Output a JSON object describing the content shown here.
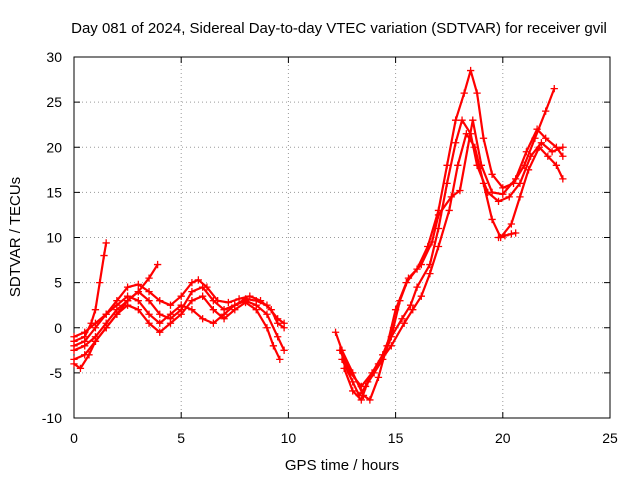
{
  "chart_data": {
    "type": "scatter",
    "title": "Day 081 of 2024, Sidereal Day-to-day VTEC variation (SDTVAR) for receiver gvil",
    "xlabel": "GPS time / hours",
    "ylabel": "SDTVAR / TECUs",
    "xlim": [
      0,
      25
    ],
    "ylim": [
      -10,
      30
    ],
    "xticks": [
      0,
      5,
      10,
      15,
      20,
      25
    ],
    "yticks": [
      -10,
      -5,
      0,
      5,
      10,
      15,
      20,
      25,
      30
    ],
    "grid": true,
    "color": "#ff0000",
    "marker": "plus",
    "series": [
      {
        "values": [
          [
            0.0,
            -1.5
          ],
          [
            0.5,
            -1.0
          ],
          [
            0.8,
            0.5
          ],
          [
            1.0,
            2.0
          ],
          [
            1.2,
            5.0
          ],
          [
            1.4,
            8.0
          ],
          [
            1.5,
            9.4
          ]
        ]
      },
      {
        "values": [
          [
            0.0,
            -4.0
          ],
          [
            0.3,
            -4.5
          ],
          [
            0.7,
            -3.0
          ],
          [
            1.0,
            -1.5
          ],
          [
            1.5,
            0.0
          ],
          [
            2.0,
            1.5
          ],
          [
            2.5,
            3.0
          ],
          [
            3.0,
            4.0
          ],
          [
            3.5,
            5.5
          ],
          [
            3.9,
            7.0
          ]
        ]
      },
      {
        "values": [
          [
            0.0,
            -2.0
          ],
          [
            0.5,
            -1.5
          ],
          [
            1.0,
            0.0
          ],
          [
            1.5,
            1.5
          ],
          [
            2.0,
            3.0
          ],
          [
            2.5,
            4.5
          ],
          [
            3.0,
            4.8
          ],
          [
            3.5,
            4.0
          ],
          [
            4.0,
            3.0
          ],
          [
            4.5,
            2.5
          ],
          [
            5.0,
            3.5
          ],
          [
            5.5,
            5.0
          ],
          [
            5.8,
            5.3
          ],
          [
            6.2,
            4.5
          ],
          [
            6.7,
            3.0
          ],
          [
            7.2,
            2.8
          ],
          [
            7.7,
            3.2
          ],
          [
            8.2,
            3.5
          ],
          [
            8.7,
            3.0
          ],
          [
            9.2,
            2.0
          ],
          [
            9.5,
            0.5
          ],
          [
            9.8,
            0.0
          ]
        ]
      },
      {
        "values": [
          [
            0.0,
            -1.0
          ],
          [
            0.5,
            -0.5
          ],
          [
            1.0,
            0.5
          ],
          [
            1.5,
            1.5
          ],
          [
            2.0,
            2.5
          ],
          [
            2.5,
            3.5
          ],
          [
            3.0,
            3.0
          ],
          [
            3.5,
            1.5
          ],
          [
            4.0,
            0.5
          ],
          [
            4.5,
            1.5
          ],
          [
            5.0,
            2.5
          ],
          [
            5.5,
            2.0
          ],
          [
            6.0,
            1.0
          ],
          [
            6.5,
            0.5
          ],
          [
            7.0,
            1.5
          ],
          [
            7.5,
            2.5
          ],
          [
            8.0,
            3.0
          ],
          [
            8.5,
            2.5
          ],
          [
            9.0,
            1.5
          ],
          [
            9.5,
            -1.0
          ],
          [
            9.8,
            -2.5
          ]
        ]
      },
      {
        "values": [
          [
            0.0,
            -3.5
          ],
          [
            0.5,
            -3.0
          ],
          [
            1.0,
            -1.5
          ],
          [
            1.5,
            0.0
          ],
          [
            2.0,
            1.5
          ],
          [
            2.5,
            2.5
          ],
          [
            3.0,
            2.0
          ],
          [
            3.5,
            0.5
          ],
          [
            4.0,
            -0.5
          ],
          [
            4.5,
            0.5
          ],
          [
            5.0,
            1.5
          ],
          [
            5.5,
            3.0
          ],
          [
            6.0,
            3.5
          ],
          [
            6.5,
            2.0
          ],
          [
            7.0,
            1.0
          ],
          [
            7.5,
            2.0
          ],
          [
            8.0,
            2.8
          ],
          [
            8.5,
            2.0
          ],
          [
            9.0,
            0.0
          ],
          [
            9.3,
            -2.0
          ],
          [
            9.6,
            -3.5
          ]
        ]
      },
      {
        "values": [
          [
            0.0,
            -2.5
          ],
          [
            0.5,
            -2.0
          ],
          [
            1.0,
            -1.0
          ],
          [
            1.5,
            0.5
          ],
          [
            2.0,
            2.0
          ],
          [
            2.5,
            3.0
          ],
          [
            3.0,
            4.0
          ],
          [
            3.5,
            3.0
          ],
          [
            4.0,
            1.5
          ],
          [
            4.5,
            1.0
          ],
          [
            5.0,
            2.0
          ],
          [
            5.5,
            4.0
          ],
          [
            6.0,
            4.5
          ],
          [
            6.5,
            3.0
          ],
          [
            7.0,
            2.0
          ],
          [
            7.5,
            2.5
          ],
          [
            8.0,
            3.2
          ],
          [
            8.5,
            3.0
          ],
          [
            9.0,
            2.5
          ],
          [
            9.5,
            1.0
          ],
          [
            9.8,
            0.5
          ]
        ]
      },
      {
        "values": [
          [
            12.2,
            -0.5
          ],
          [
            12.5,
            -2.5
          ],
          [
            13.0,
            -5.0
          ],
          [
            13.5,
            -7.5
          ],
          [
            13.8,
            -8.0
          ],
          [
            14.2,
            -5.5
          ],
          [
            14.6,
            -2.0
          ],
          [
            15.0,
            2.0
          ],
          [
            15.5,
            5.0
          ],
          [
            16.0,
            6.5
          ],
          [
            16.5,
            9.0
          ],
          [
            17.0,
            13.0
          ],
          [
            17.4,
            18.0
          ],
          [
            17.8,
            23.0
          ],
          [
            18.2,
            26.0
          ],
          [
            18.5,
            28.5
          ],
          [
            18.8,
            26.0
          ],
          [
            19.1,
            21.0
          ],
          [
            19.5,
            17.0
          ],
          [
            20.0,
            15.5
          ],
          [
            20.5,
            16.0
          ],
          [
            21.0,
            18.0
          ],
          [
            21.5,
            21.0
          ],
          [
            22.0,
            24.0
          ],
          [
            22.4,
            26.5
          ]
        ]
      },
      {
        "values": [
          [
            12.5,
            -3.5
          ],
          [
            13.0,
            -6.0
          ],
          [
            13.3,
            -7.5
          ],
          [
            13.6,
            -6.5
          ],
          [
            14.0,
            -5.0
          ],
          [
            14.4,
            -3.5
          ],
          [
            14.8,
            -1.0
          ],
          [
            15.3,
            1.0
          ],
          [
            15.7,
            2.5
          ],
          [
            16.0,
            4.5
          ],
          [
            16.6,
            7.0
          ],
          [
            17.0,
            11.0
          ],
          [
            17.4,
            16.0
          ],
          [
            17.8,
            20.5
          ],
          [
            18.1,
            23.0
          ],
          [
            18.5,
            21.5
          ],
          [
            18.8,
            18.0
          ],
          [
            19.3,
            15.0
          ],
          [
            19.8,
            14.0
          ],
          [
            20.3,
            14.5
          ],
          [
            20.8,
            16.0
          ],
          [
            21.3,
            19.0
          ],
          [
            21.8,
            20.5
          ],
          [
            22.3,
            19.5
          ],
          [
            22.8,
            20.0
          ]
        ]
      },
      {
        "values": [
          [
            12.6,
            -4.5
          ],
          [
            13.0,
            -7.0
          ],
          [
            13.4,
            -8.0
          ],
          [
            13.7,
            -6.0
          ],
          [
            14.2,
            -4.0
          ],
          [
            14.8,
            -2.0
          ],
          [
            15.4,
            0.5
          ],
          [
            15.8,
            2.0
          ],
          [
            16.2,
            3.5
          ],
          [
            16.6,
            6.0
          ],
          [
            17.0,
            9.0
          ],
          [
            17.5,
            13.0
          ],
          [
            17.9,
            18.0
          ],
          [
            18.3,
            21.5
          ],
          [
            18.7,
            20.0
          ],
          [
            19.1,
            16.0
          ],
          [
            19.5,
            12.0
          ],
          [
            19.9,
            10.0
          ],
          [
            20.4,
            11.5
          ],
          [
            20.8,
            14.5
          ],
          [
            21.2,
            17.5
          ],
          [
            21.7,
            20.0
          ],
          [
            22.1,
            19.0
          ],
          [
            22.5,
            18.0
          ],
          [
            22.8,
            16.5
          ]
        ]
      },
      {
        "values": [
          [
            12.4,
            -2.5
          ],
          [
            12.9,
            -5.0
          ],
          [
            13.4,
            -6.5
          ],
          [
            13.9,
            -5.0
          ],
          [
            14.4,
            -3.0
          ],
          [
            14.9,
            0.0
          ],
          [
            15.2,
            3.0
          ],
          [
            15.6,
            5.5
          ],
          [
            16.2,
            7.0
          ],
          [
            16.7,
            9.5
          ],
          [
            17.0,
            12.5
          ],
          [
            17.6,
            14.5
          ],
          [
            18.0,
            15.2
          ],
          [
            18.6,
            23.0
          ],
          [
            19.0,
            18.0
          ],
          [
            19.5,
            15.0
          ],
          [
            20.0,
            14.8
          ],
          [
            20.6,
            16.5
          ],
          [
            21.1,
            19.5
          ],
          [
            21.6,
            22.0
          ],
          [
            22.0,
            21.0
          ],
          [
            22.5,
            20.0
          ],
          [
            22.8,
            19.0
          ]
        ]
      },
      {
        "values": [
          [
            19.8,
            10.0
          ],
          [
            20.1,
            10.2
          ],
          [
            20.4,
            10.4
          ],
          [
            20.6,
            10.5
          ]
        ]
      }
    ]
  }
}
